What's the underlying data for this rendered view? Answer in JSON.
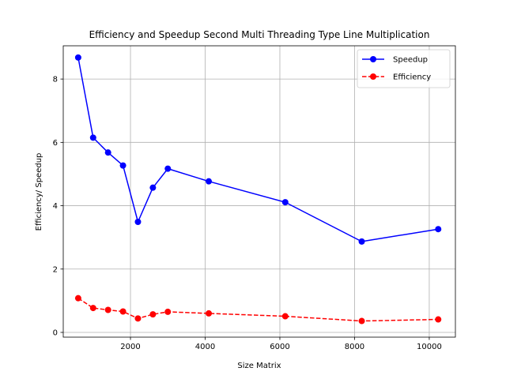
{
  "chart_data": {
    "type": "line",
    "title": "Efficiency and Speedup Second Multi Threading Type Line Multiplication",
    "xlabel": "Size Matrix",
    "ylabel": "Efficiency/ Speedup",
    "xlim": [
      200,
      10700
    ],
    "ylim": [
      -0.15,
      9.05
    ],
    "xticks": [
      2000,
      4000,
      6000,
      8000,
      10000
    ],
    "yticks": [
      0,
      2,
      4,
      6,
      8
    ],
    "grid": true,
    "legend_position": "top-right",
    "x": [
      600,
      1000,
      1400,
      1800,
      2200,
      2600,
      3000,
      4096,
      6144,
      8192,
      10240
    ],
    "series": [
      {
        "name": "Speedup",
        "color": "#0000ff",
        "line_style": "solid",
        "marker": "circle",
        "values": [
          8.68,
          6.15,
          5.68,
          5.27,
          3.49,
          4.57,
          5.17,
          4.77,
          4.11,
          2.87,
          3.26
        ]
      },
      {
        "name": "Efficiency",
        "color": "#ff0000",
        "line_style": "dashed",
        "marker": "circle",
        "values": [
          1.08,
          0.77,
          0.71,
          0.66,
          0.44,
          0.57,
          0.65,
          0.6,
          0.51,
          0.36,
          0.41
        ]
      }
    ]
  }
}
